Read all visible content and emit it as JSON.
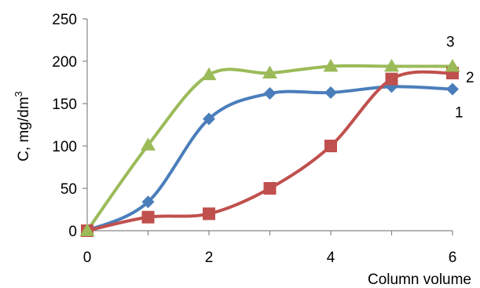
{
  "chart_data": {
    "type": "line",
    "title": "",
    "xlabel": "Column volume",
    "ylabel": "C, mg/dm",
    "ylabel_superscript": "3",
    "xlim": [
      0,
      6
    ],
    "ylim": [
      0,
      250
    ],
    "x_ticks": [
      "0",
      "2",
      "4",
      "6"
    ],
    "y_ticks": [
      "0",
      "50",
      "100",
      "150",
      "200",
      "250"
    ],
    "grid": false,
    "legend": "none",
    "smooth": true,
    "series": [
      {
        "name": "1",
        "color": "#4a7ebb",
        "marker": "diamond",
        "x": [
          0,
          1,
          2,
          3,
          4,
          5,
          6
        ],
        "y": [
          0,
          34,
          132,
          162,
          163,
          170,
          167
        ]
      },
      {
        "name": "2",
        "color": "#c0504d",
        "marker": "square",
        "x": [
          0,
          1,
          2,
          3,
          4,
          5,
          6
        ],
        "y": [
          0,
          16,
          20,
          50,
          100,
          179,
          186
        ]
      },
      {
        "name": "3",
        "color": "#9bbb59",
        "marker": "triangle",
        "x": [
          0,
          1,
          2,
          3,
          4,
          5,
          6
        ],
        "y": [
          0,
          101,
          184,
          186,
          194,
          194,
          194
        ]
      }
    ]
  }
}
